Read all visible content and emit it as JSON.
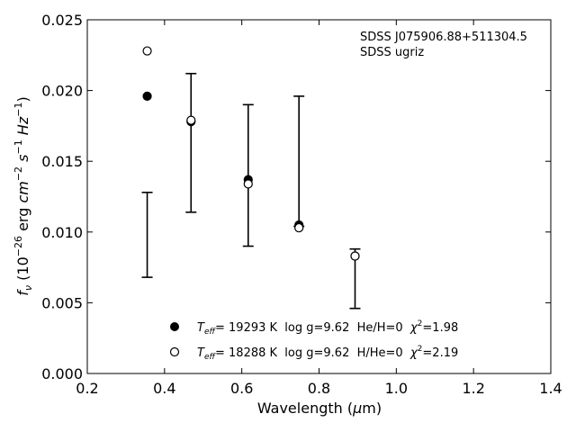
{
  "chart_data": {
    "type": "scatter",
    "annotation_lines": [
      "SDSS J075906.88+511304.5",
      "SDSS ugriz"
    ],
    "xlabel": "Wavelength (μm)",
    "ylabel": "f_ν (10^-26 erg cm^-2 s^-1 Hz^-1)",
    "xlim": [
      0.2,
      1.4
    ],
    "ylim": [
      0.0,
      0.025
    ],
    "x_ticks": [
      0.2,
      0.4,
      0.6,
      0.8,
      1.0,
      1.2,
      1.4
    ],
    "x_tick_labels": [
      "0.2",
      "0.4",
      "0.6",
      "0.8",
      "1.0",
      "1.2",
      "1.4"
    ],
    "y_ticks": [
      0.0,
      0.005,
      0.01,
      0.015,
      0.02,
      0.025
    ],
    "y_tick_labels": [
      "0.000",
      "0.005",
      "0.010",
      "0.015",
      "0.020",
      "0.025"
    ],
    "grid": false,
    "observed": {
      "x": [
        0.3551,
        0.4686,
        0.6166,
        0.748,
        0.8932
      ],
      "y": [
        0.0098,
        0.0163,
        0.014,
        0.015,
        0.0067
      ],
      "yerr": [
        0.003,
        0.0049,
        0.005,
        0.0046,
        0.0021
      ]
    },
    "series": [
      {
        "marker": "filled-circle",
        "x": [
          0.3551,
          0.4686,
          0.6166,
          0.748,
          0.8932
        ],
        "y": [
          0.0196,
          0.0178,
          0.0137,
          0.0105,
          0.0083
        ],
        "legend_label": {
          "teff_prefix": "T",
          "teff_sub": "eff",
          "teff_rest": "= 19293 K  log g=9.62  He/H=0  ",
          "chi_prefix": "χ",
          "chi_sup": "2",
          "chi_rest": "=1.98"
        }
      },
      {
        "marker": "open-circle",
        "x": [
          0.3551,
          0.4686,
          0.6166,
          0.748,
          0.8932
        ],
        "y": [
          0.0228,
          0.0179,
          0.0134,
          0.0103,
          0.0083
        ],
        "legend_label": {
          "teff_prefix": "T",
          "teff_sub": "eff",
          "teff_rest": "= 18288 K  log g=9.62  H/He=0  ",
          "chi_prefix": "χ",
          "chi_sup": "2",
          "chi_rest": "=2.19"
        }
      }
    ],
    "legend_position": "lower-center",
    "colors": {
      "marker": "#000000",
      "background": "#ffffff"
    }
  }
}
